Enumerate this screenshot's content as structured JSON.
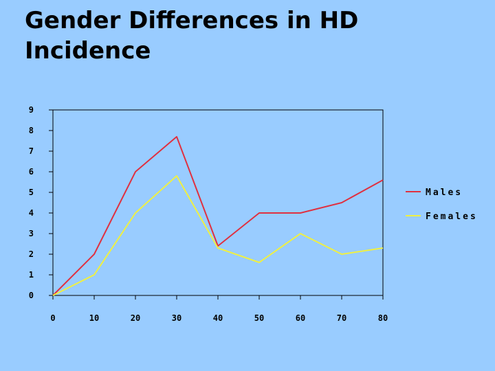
{
  "title": "Gender Differences in HD Incidence",
  "chart_data": {
    "type": "line",
    "title": "Gender Differences in HD Incidence",
    "xlabel": "",
    "ylabel": "",
    "x": [
      0,
      10,
      20,
      30,
      40,
      50,
      60,
      70,
      80
    ],
    "xlim": [
      0,
      80
    ],
    "ylim": [
      0,
      9
    ],
    "xticks": [
      "0",
      "10",
      "20",
      "30",
      "40",
      "50",
      "60",
      "70",
      "80"
    ],
    "yticks": [
      "0",
      "1",
      "2",
      "3",
      "4",
      "5",
      "6",
      "7",
      "8",
      "9"
    ],
    "grid": false,
    "legend_position": "right",
    "series": [
      {
        "name": "Males",
        "color": "#e03040",
        "values": [
          0,
          2.0,
          6.0,
          7.7,
          2.4,
          4.0,
          4.0,
          4.5,
          5.6
        ]
      },
      {
        "name": "Females",
        "color": "#f0f040",
        "values": [
          0,
          1.0,
          4.0,
          5.8,
          2.3,
          1.6,
          3.0,
          2.0,
          2.3
        ]
      }
    ]
  }
}
